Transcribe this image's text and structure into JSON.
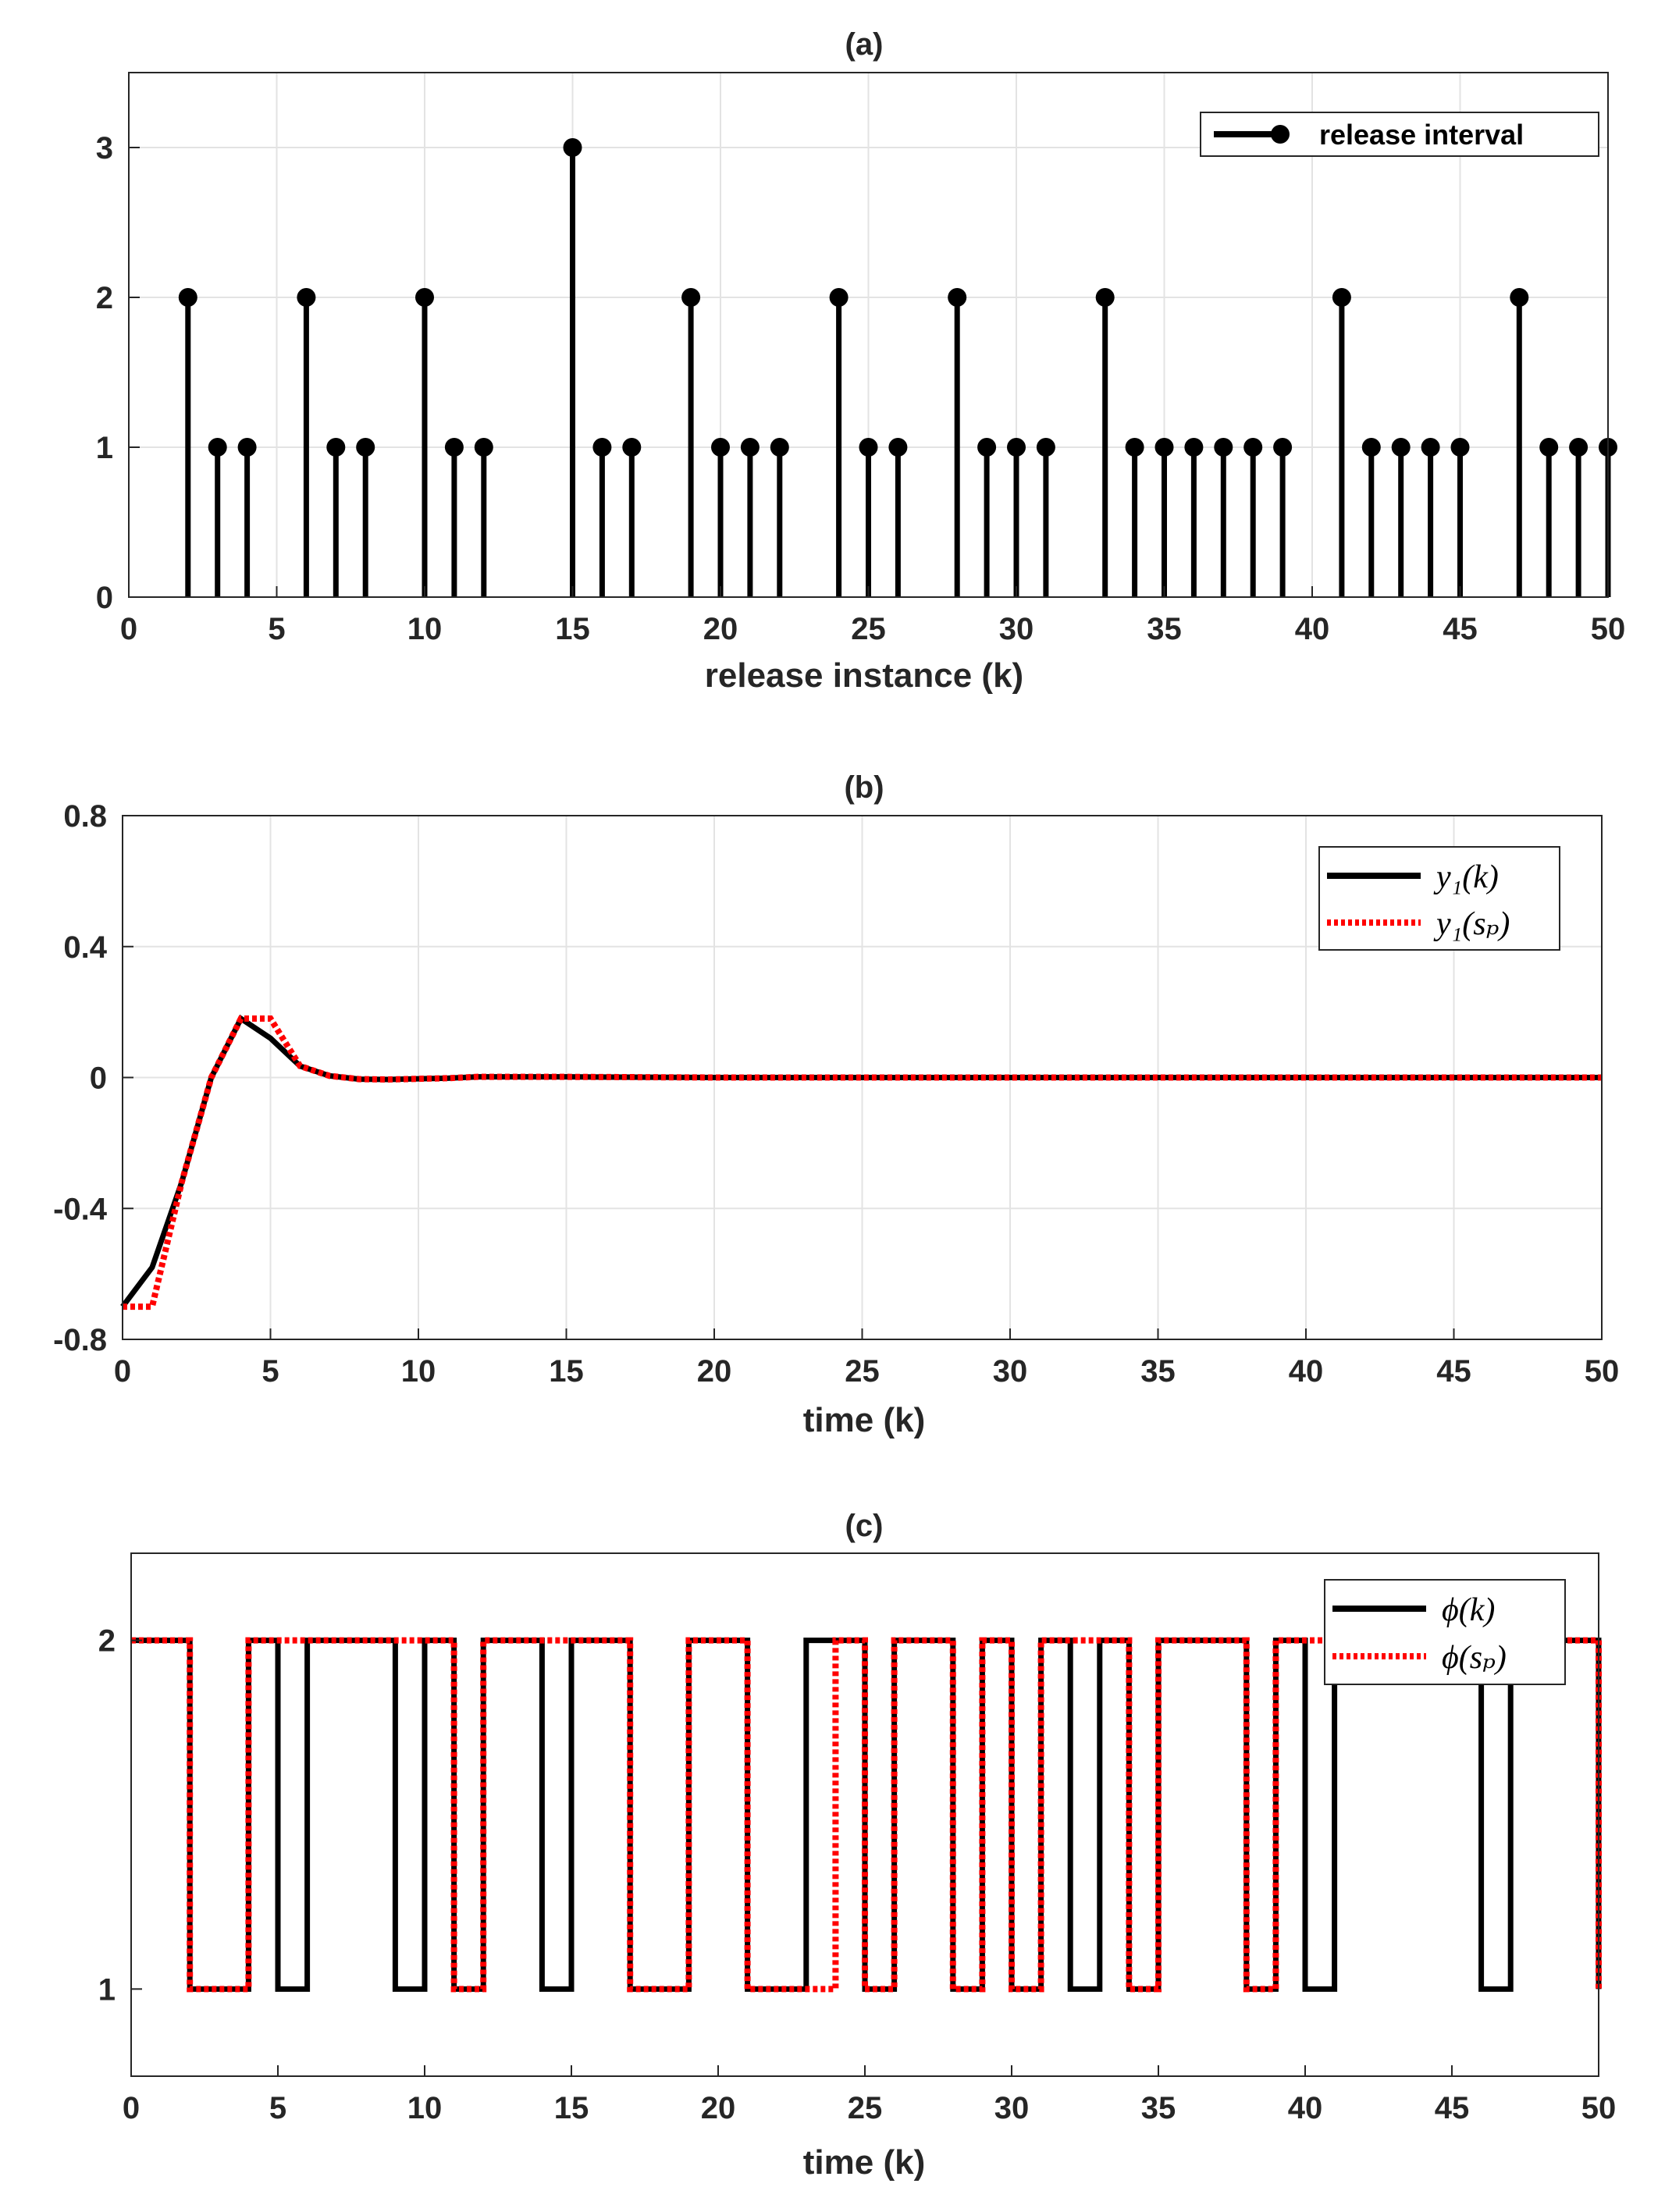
{
  "chart_data": [
    {
      "type": "stem",
      "title": "(a)",
      "xlabel": "release instance (k)",
      "ylabel": "",
      "xlim": [
        0,
        50
      ],
      "ylim": [
        0,
        3.5
      ],
      "xticks": [
        0,
        5,
        10,
        15,
        20,
        25,
        30,
        35,
        40,
        45,
        50
      ],
      "yticks": [
        0,
        1,
        2,
        3
      ],
      "grid": true,
      "legend_position": "top-right",
      "series": [
        {
          "name": "release interval",
          "color": "#000000",
          "x": [
            2,
            3,
            4,
            6,
            7,
            8,
            10,
            11,
            12,
            15,
            16,
            17,
            19,
            20,
            21,
            22,
            24,
            25,
            26,
            28,
            29,
            30,
            31,
            33,
            34,
            35,
            36,
            37,
            38,
            39,
            41,
            42,
            43,
            44,
            45,
            47,
            48,
            49,
            50
          ],
          "values": [
            2,
            1,
            1,
            2,
            1,
            1,
            2,
            1,
            1,
            3,
            1,
            1,
            2,
            1,
            1,
            1,
            2,
            1,
            1,
            2,
            1,
            1,
            1,
            2,
            1,
            1,
            1,
            1,
            1,
            1,
            2,
            1,
            1,
            1,
            1,
            2,
            1,
            1,
            1
          ]
        }
      ]
    },
    {
      "type": "line",
      "title": "(b)",
      "xlabel": "time (k)",
      "ylabel": "",
      "xlim": [
        0,
        50
      ],
      "ylim": [
        -0.8,
        0.8
      ],
      "xticks": [
        0,
        5,
        10,
        15,
        20,
        25,
        30,
        35,
        40,
        45,
        50
      ],
      "yticks": [
        -0.8,
        -0.4,
        0,
        0.4,
        0.8
      ],
      "ytick_labels": [
        "-0.8",
        "-0.4",
        "0",
        "0.4",
        "0.8"
      ],
      "grid": true,
      "legend_position": "top-right",
      "series": [
        {
          "name": "y1(k)",
          "color": "#000000",
          "style": "solid",
          "x": [
            0,
            1,
            2,
            3,
            4,
            5,
            6,
            7,
            8,
            9,
            10,
            11,
            12,
            15,
            20,
            30,
            40,
            50
          ],
          "values": [
            -0.7,
            -0.58,
            -0.32,
            0.0,
            0.18,
            0.12,
            0.035,
            0.005,
            -0.005,
            -0.006,
            -0.004,
            -0.002,
            0.002,
            0.002,
            0.0,
            0.0,
            0.0,
            0.0
          ]
        },
        {
          "name": "y1(sp)",
          "color": "#ff0000",
          "style": "dotted",
          "x": [
            0,
            1,
            2,
            3,
            4,
            5,
            6,
            7,
            8,
            9,
            10,
            11,
            12,
            15,
            20,
            30,
            40,
            50
          ],
          "values": [
            -0.7,
            -0.7,
            -0.32,
            0.0,
            0.18,
            0.18,
            0.035,
            0.005,
            -0.005,
            -0.006,
            -0.004,
            -0.002,
            0.002,
            0.002,
            0.0,
            0.0,
            0.0,
            0.0
          ]
        }
      ]
    },
    {
      "type": "line",
      "title": "(c)",
      "xlabel": "time (k)",
      "ylabel": "",
      "xlim": [
        0,
        50
      ],
      "ylim": [
        0.75,
        2.25
      ],
      "xticks": [
        0,
        5,
        10,
        15,
        20,
        25,
        30,
        35,
        40,
        45,
        50
      ],
      "yticks": [
        1,
        2
      ],
      "grid": false,
      "legend_position": "top-right",
      "series": [
        {
          "name": "phi(k)",
          "color": "#000000",
          "style": "solid",
          "step": true,
          "x": [
            0,
            2,
            4,
            5,
            6,
            9,
            10,
            11,
            12,
            14,
            15,
            17,
            19,
            21,
            23,
            24,
            25,
            26,
            28,
            29,
            30,
            31,
            32,
            33,
            34,
            35,
            38,
            39,
            40,
            41,
            46,
            47,
            50
          ],
          "values": [
            2,
            1,
            2,
            1,
            2,
            1,
            2,
            1,
            2,
            1,
            2,
            1,
            2,
            1,
            2,
            2,
            1,
            2,
            1,
            2,
            1,
            2,
            1,
            2,
            1,
            2,
            1,
            2,
            1,
            2,
            1,
            2,
            1
          ]
        },
        {
          "name": "phi(sp)",
          "color": "#ff0000",
          "style": "dotted",
          "step": true,
          "x": [
            0,
            2,
            4,
            11,
            12,
            17,
            19,
            21,
            24,
            25,
            26,
            28,
            29,
            30,
            31,
            33,
            34,
            35,
            38,
            39,
            50
          ],
          "values": [
            2,
            1,
            2,
            1,
            2,
            1,
            2,
            1,
            2,
            1,
            2,
            1,
            2,
            1,
            2,
            2,
            1,
            2,
            1,
            2,
            1
          ]
        }
      ]
    }
  ]
}
